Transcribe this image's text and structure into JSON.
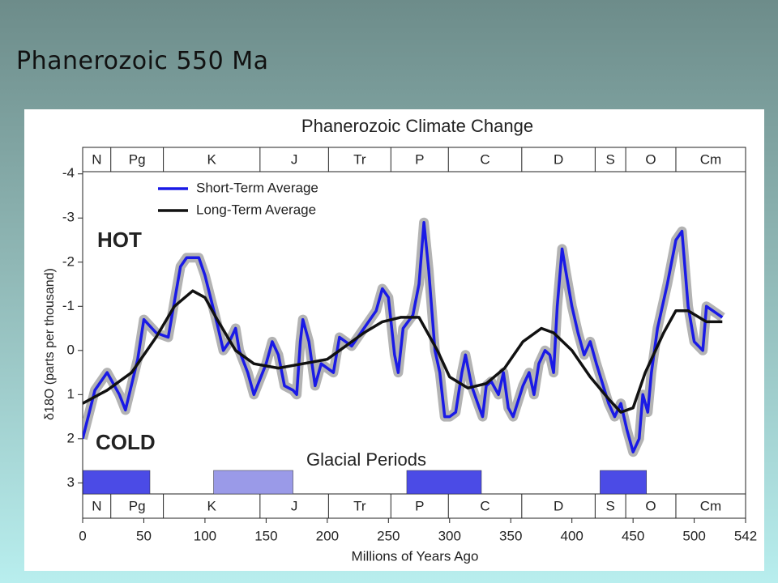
{
  "slide_title": "Phanerozoic 550 Ma",
  "chart_data": {
    "type": "line",
    "title": "Phanerozoic Climate Change",
    "x_label": "Millions of Years Ago",
    "y_label": "δ18O (parts per thousand)",
    "xlim": [
      0,
      542
    ],
    "xticks": [
      0,
      50,
      100,
      150,
      200,
      250,
      300,
      350,
      400,
      450,
      500,
      542
    ],
    "ylim": [
      3.25,
      -4.05
    ],
    "yticks": [
      -4,
      -3,
      -2,
      -1,
      0,
      1,
      2,
      3
    ],
    "annotations": [
      {
        "text": "HOT",
        "color": "#e8221c"
      },
      {
        "text": "COLD",
        "color": "#1a2a6c"
      },
      {
        "text": "Glacial Periods",
        "color": "#6a6ae6"
      }
    ],
    "periods": [
      {
        "name": "N",
        "start": 0,
        "end": 23
      },
      {
        "name": "Pg",
        "start": 23,
        "end": 66
      },
      {
        "name": "K",
        "start": 66,
        "end": 145
      },
      {
        "name": "J",
        "start": 145,
        "end": 201
      },
      {
        "name": "Tr",
        "start": 201,
        "end": 252
      },
      {
        "name": "P",
        "start": 252,
        "end": 299
      },
      {
        "name": "C",
        "start": 299,
        "end": 359
      },
      {
        "name": "D",
        "start": 359,
        "end": 419
      },
      {
        "name": "S",
        "start": 419,
        "end": 444
      },
      {
        "name": "O",
        "start": 444,
        "end": 485
      },
      {
        "name": "Cm",
        "start": 485,
        "end": 542
      }
    ],
    "glacial_periods": [
      {
        "start": 0,
        "end": 55,
        "color": "#4b4be6"
      },
      {
        "start": 107,
        "end": 172,
        "color": "#9a9ae8"
      },
      {
        "start": 265,
        "end": 326,
        "color": "#4b4be6"
      },
      {
        "start": 423,
        "end": 461,
        "color": "#4b4be6"
      }
    ],
    "series": [
      {
        "name": "Short-Term Average",
        "color": "#1a1ae6",
        "x": [
          0,
          10,
          20,
          30,
          35,
          45,
          50,
          60,
          70,
          80,
          85,
          95,
          100,
          110,
          115,
          120,
          125,
          128,
          135,
          140,
          150,
          155,
          160,
          165,
          172,
          175,
          178,
          180,
          185,
          190,
          195,
          205,
          210,
          220,
          230,
          240,
          245,
          250,
          255,
          258,
          262,
          270,
          275,
          279,
          283,
          288,
          292,
          296,
          300,
          305,
          310,
          313,
          318,
          323,
          327,
          330,
          334,
          340,
          344,
          348,
          352,
          360,
          365,
          369,
          373,
          378,
          382,
          385,
          388,
          392,
          395,
          400,
          405,
          410,
          415,
          420,
          430,
          435,
          440,
          445,
          450,
          455,
          458,
          462,
          465,
          470,
          478,
          485,
          490,
          495,
          500,
          507,
          510,
          523
        ],
        "values": [
          2.0,
          0.9,
          0.5,
          1.0,
          1.35,
          0.2,
          -0.7,
          -0.4,
          -0.3,
          -1.9,
          -2.1,
          -2.1,
          -1.7,
          -0.6,
          0.0,
          -0.2,
          -0.5,
          0.0,
          0.5,
          1.0,
          0.3,
          -0.2,
          0.1,
          0.8,
          0.9,
          1.0,
          -0.2,
          -0.7,
          -0.2,
          0.8,
          0.3,
          0.5,
          -0.3,
          -0.1,
          -0.5,
          -0.9,
          -1.4,
          -1.2,
          0.1,
          0.5,
          -0.5,
          -0.8,
          -1.5,
          -2.9,
          -1.8,
          0.0,
          0.5,
          1.5,
          1.5,
          1.4,
          0.5,
          0.1,
          0.8,
          1.2,
          1.5,
          0.8,
          0.7,
          1.0,
          0.5,
          1.3,
          1.5,
          0.8,
          0.5,
          1.0,
          0.3,
          0.0,
          0.1,
          0.5,
          -1.0,
          -2.3,
          -1.8,
          -1.0,
          -0.4,
          0.1,
          -0.2,
          0.3,
          1.2,
          1.5,
          1.2,
          1.8,
          2.3,
          2.0,
          1.0,
          1.4,
          0.5,
          -0.5,
          -1.5,
          -2.5,
          -2.7,
          -1.0,
          -0.2,
          0.0,
          -1.0,
          -0.75
        ]
      },
      {
        "name": "Long-Term Average",
        "color": "#111111",
        "x": [
          0,
          20,
          40,
          60,
          75,
          90,
          100,
          110,
          125,
          140,
          160,
          180,
          200,
          215,
          230,
          245,
          260,
          275,
          290,
          300,
          315,
          330,
          345,
          360,
          375,
          385,
          400,
          415,
          430,
          440,
          450,
          460,
          475,
          485,
          495,
          510,
          523
        ],
        "values": [
          1.2,
          0.9,
          0.5,
          -0.3,
          -1.0,
          -1.35,
          -1.2,
          -0.7,
          0.0,
          0.3,
          0.4,
          0.3,
          0.2,
          -0.1,
          -0.4,
          -0.65,
          -0.75,
          -0.75,
          0.0,
          0.6,
          0.85,
          0.75,
          0.4,
          -0.2,
          -0.5,
          -0.4,
          0.0,
          0.6,
          1.1,
          1.4,
          1.3,
          0.5,
          -0.4,
          -0.9,
          -0.9,
          -0.65,
          -0.65
        ]
      }
    ]
  }
}
